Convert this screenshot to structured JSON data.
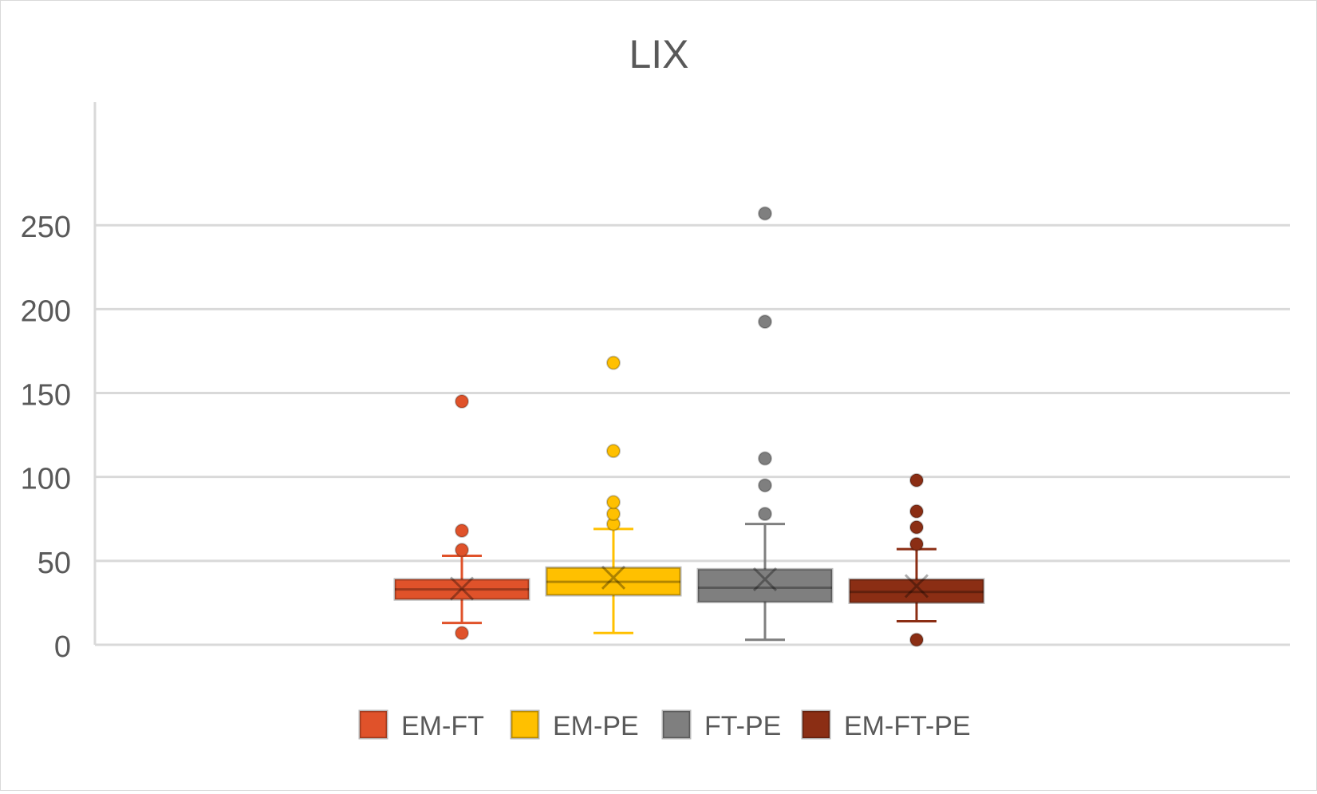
{
  "chart_data": {
    "type": "box",
    "title": "LIX",
    "xlabel": "",
    "ylabel": "",
    "ylim": [
      0,
      260
    ],
    "yticks": [
      0,
      50,
      100,
      150,
      200,
      250
    ],
    "grid": true,
    "legend_position": "bottom",
    "series": [
      {
        "name": "EM-FT",
        "color": "#E0522A",
        "whisker_low": 13,
        "q1": 27,
        "median": 33,
        "mean": 33.5,
        "q3": 39,
        "whisker_high": 53,
        "outliers": [
          7,
          56.5,
          68,
          145
        ]
      },
      {
        "name": "EM-PE",
        "color": "#FFC000",
        "whisker_low": 7,
        "q1": 29.5,
        "median": 37.5,
        "mean": 40,
        "q3": 46,
        "whisker_high": 69,
        "outliers": [
          72,
          78,
          85,
          115.5,
          168
        ]
      },
      {
        "name": "FT-PE",
        "color": "#7F7F7F",
        "whisker_low": 3,
        "q1": 25.5,
        "median": 34,
        "mean": 39,
        "q3": 45,
        "whisker_high": 72,
        "outliers": [
          78,
          95,
          111,
          192.5,
          257
        ]
      },
      {
        "name": "EM-FT-PE",
        "color": "#8B2E14",
        "whisker_low": 14,
        "q1": 25,
        "median": 31.5,
        "mean": 35,
        "q3": 39,
        "whisker_high": 57,
        "outliers": [
          3,
          60,
          70,
          79.5,
          98
        ]
      }
    ]
  }
}
